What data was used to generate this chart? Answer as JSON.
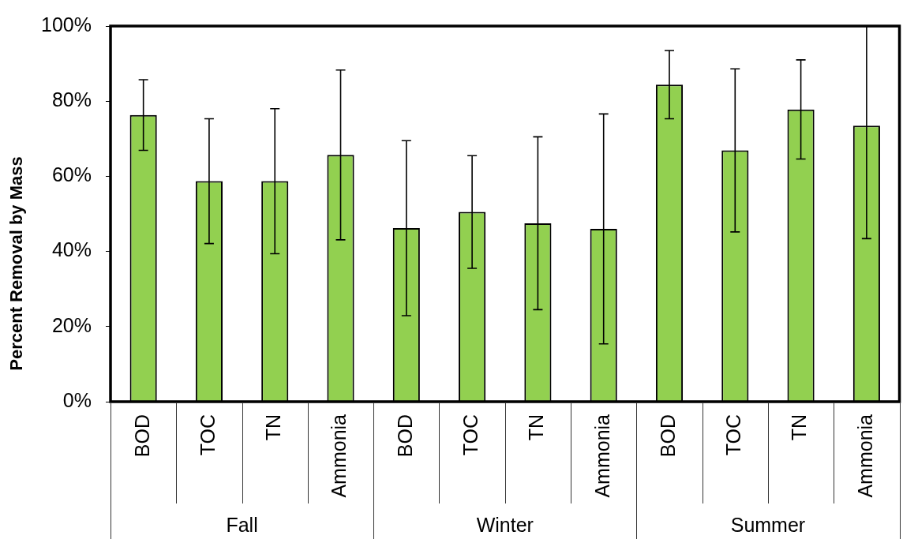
{
  "chart_data": {
    "type": "bar",
    "ylabel": "Percent Removal by Mass",
    "categories": [
      "BOD",
      "TOC",
      "TN",
      "Ammonia",
      "BOD",
      "TOC",
      "TN",
      "Ammonia",
      "BOD",
      "TOC",
      "TN",
      "Ammonia"
    ],
    "values": [
      76.3,
      58.7,
      58.7,
      65.7,
      46.2,
      50.5,
      47.5,
      46.0,
      84.4,
      66.9,
      77.8,
      73.5
    ],
    "errors": [
      9.4,
      16.6,
      19.3,
      22.6,
      23.3,
      15.0,
      23.0,
      30.6,
      9.1,
      21.7,
      13.2,
      [
        43.4,
        100
      ]
    ],
    "color": "#92d050",
    "ylim": [
      0,
      100
    ],
    "yticks": [
      {
        "value": 0,
        "label": "0%"
      },
      {
        "value": 20,
        "label": "20%"
      },
      {
        "value": 40,
        "label": "40%"
      },
      {
        "value": 60,
        "label": "60%"
      },
      {
        "value": 80,
        "label": "80%"
      },
      {
        "value": 100,
        "label": "100%"
      }
    ],
    "annotations": [
      "Fall",
      "Winter",
      "Summer"
    ]
  }
}
